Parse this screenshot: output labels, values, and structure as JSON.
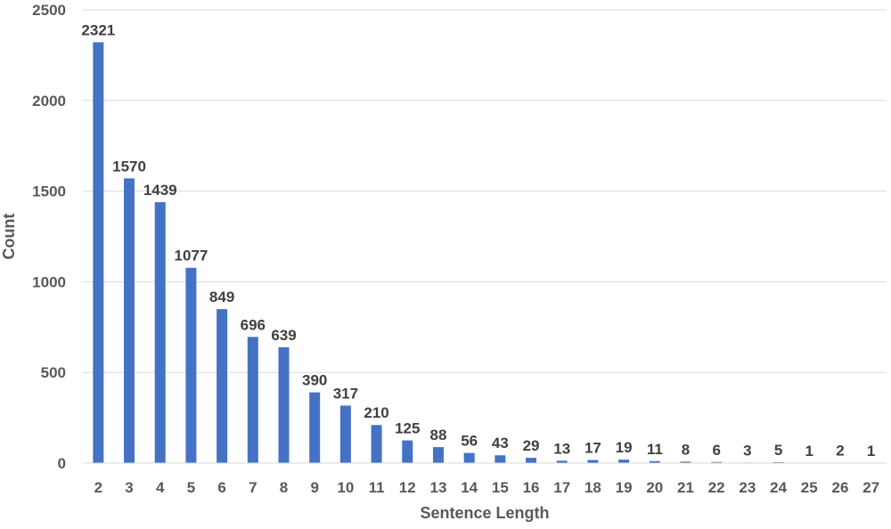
{
  "chart_data": {
    "type": "bar",
    "title": "",
    "xlabel": "Sentence Length",
    "ylabel": "Count",
    "ylim": [
      0,
      2500
    ],
    "yticks": [
      0,
      500,
      1000,
      1500,
      2000,
      2500
    ],
    "grid": true,
    "legend": "none",
    "bar_color": "#4472C4",
    "categories": [
      "2",
      "3",
      "4",
      "5",
      "6",
      "7",
      "8",
      "9",
      "10",
      "11",
      "12",
      "13",
      "14",
      "15",
      "16",
      "17",
      "18",
      "19",
      "20",
      "21",
      "22",
      "23",
      "24",
      "25",
      "26",
      "27"
    ],
    "values": [
      2321,
      1570,
      1439,
      1077,
      849,
      696,
      639,
      390,
      317,
      210,
      125,
      88,
      56,
      43,
      29,
      13,
      17,
      19,
      11,
      8,
      6,
      3,
      5,
      1,
      2,
      1
    ]
  }
}
